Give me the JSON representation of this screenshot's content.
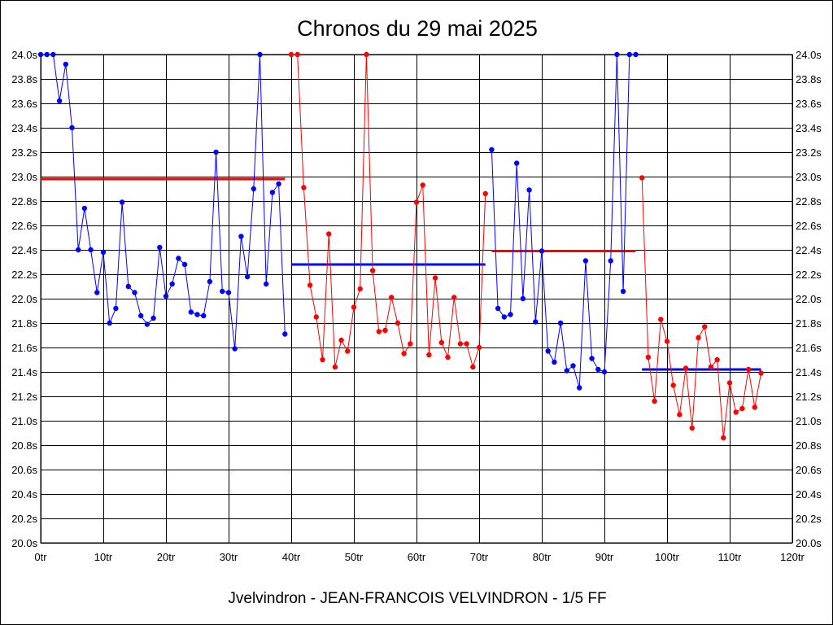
{
  "title": "Chronos du 29 mai 2025",
  "footer": "Jvelvindron - JEAN-FRANCOIS VELVINDRON - 1/5 FF",
  "colors": {
    "blue": "#0000ff",
    "red": "#ff0000",
    "grid": "#000000",
    "background": "#ffffff"
  },
  "chart_data": {
    "type": "line",
    "title": "Chronos du 29 mai 2025",
    "xlabel": "",
    "ylabel": "",
    "xlim": [
      0,
      120
    ],
    "ylim": [
      20.0,
      24.0
    ],
    "grid": true,
    "x_ticks": [
      0,
      10,
      20,
      30,
      40,
      50,
      60,
      70,
      80,
      90,
      100,
      110,
      120
    ],
    "x_tick_labels": [
      "0tr",
      "10tr",
      "20tr",
      "30tr",
      "40tr",
      "50tr",
      "60tr",
      "70tr",
      "80tr",
      "90tr",
      "100tr",
      "110tr",
      "120tr"
    ],
    "y_ticks": [
      20.0,
      20.2,
      20.4,
      20.6,
      20.8,
      21.0,
      21.2,
      21.4,
      21.6,
      21.8,
      22.0,
      22.2,
      22.4,
      22.6,
      22.8,
      23.0,
      23.2,
      23.4,
      23.6,
      23.8,
      24.0
    ],
    "y_tick_labels": [
      "20.0s",
      "20.2s",
      "20.4s",
      "20.6s",
      "20.8s",
      "21.0s",
      "21.2s",
      "21.4s",
      "21.6s",
      "21.8s",
      "22.0s",
      "22.2s",
      "22.4s",
      "22.6s",
      "22.8s",
      "23.0s",
      "23.2s",
      "23.4s",
      "23.6s",
      "23.8s",
      "24.0s"
    ],
    "series": [
      {
        "color": "#0000ff",
        "x": [
          0,
          1,
          2,
          3,
          4,
          5,
          6,
          7,
          8,
          9,
          10,
          11,
          12,
          13,
          14,
          15,
          16,
          17,
          18,
          19,
          20,
          21,
          22,
          23,
          24,
          25,
          26,
          27,
          28,
          29,
          30,
          31,
          32,
          33,
          34,
          35,
          36,
          37,
          38,
          39
        ],
        "values": [
          24.0,
          24.0,
          24.0,
          23.62,
          23.92,
          23.4,
          22.4,
          22.74,
          22.4,
          22.05,
          22.38,
          21.8,
          21.92,
          22.79,
          22.1,
          22.05,
          21.86,
          21.79,
          21.84,
          22.42,
          22.02,
          22.12,
          22.33,
          22.28,
          21.89,
          21.87,
          21.86,
          22.14,
          23.2,
          22.06,
          22.05,
          21.59,
          22.51,
          22.18,
          22.9,
          24.0,
          22.12,
          22.87,
          22.94,
          21.71
        ]
      },
      {
        "color": "#ff0000",
        "x": [
          40,
          41,
          42,
          43,
          44,
          45,
          46,
          47,
          48,
          49,
          50,
          51,
          52,
          53,
          54,
          55,
          56,
          57,
          58,
          59,
          60,
          61,
          62,
          63,
          64,
          65,
          66,
          67,
          68,
          69,
          70,
          71
        ],
        "values": [
          24.0,
          24.0,
          22.91,
          22.11,
          21.85,
          21.5,
          22.53,
          21.44,
          21.66,
          21.57,
          21.93,
          22.08,
          24.0,
          22.23,
          21.73,
          21.74,
          22.01,
          21.8,
          21.55,
          21.63,
          22.79,
          22.93,
          21.54,
          22.17,
          21.64,
          21.52,
          22.01,
          21.63,
          21.63,
          21.44,
          21.6,
          22.86
        ]
      },
      {
        "color": "#0000ff",
        "x": [
          72,
          73,
          74,
          75,
          76,
          77,
          78,
          79,
          80,
          81,
          82,
          83,
          84,
          85,
          86,
          87,
          88,
          89,
          90,
          91,
          92,
          93,
          94,
          95
        ],
        "values": [
          23.22,
          21.92,
          21.85,
          21.87,
          23.11,
          22.0,
          22.89,
          21.81,
          22.39,
          21.57,
          21.48,
          21.8,
          21.41,
          21.45,
          21.27,
          22.31,
          21.51,
          21.42,
          21.4,
          22.31,
          24.0,
          22.06,
          24.0,
          24.0
        ]
      },
      {
        "color": "#ff0000",
        "x": [
          96,
          97,
          98,
          99,
          100,
          101,
          102,
          103,
          104,
          105,
          106,
          107,
          108,
          109,
          110,
          111,
          112,
          113,
          114,
          115
        ],
        "values": [
          22.99,
          21.52,
          21.16,
          21.83,
          21.65,
          21.29,
          21.05,
          21.43,
          20.94,
          21.68,
          21.77,
          21.44,
          21.5,
          20.86,
          21.31,
          21.07,
          21.1,
          21.42,
          21.11,
          21.39
        ]
      }
    ],
    "averages": [
      {
        "color": "#ff0000",
        "x_start": 0,
        "x_end": 39,
        "value": 22.98
      },
      {
        "color": "#0000ff",
        "x_start": 40,
        "x_end": 71,
        "value": 22.28
      },
      {
        "color": "#ff0000",
        "x_start": 72,
        "x_end": 95,
        "value": 22.39
      },
      {
        "color": "#0000ff",
        "x_start": 96,
        "x_end": 115,
        "value": 21.42
      }
    ]
  }
}
